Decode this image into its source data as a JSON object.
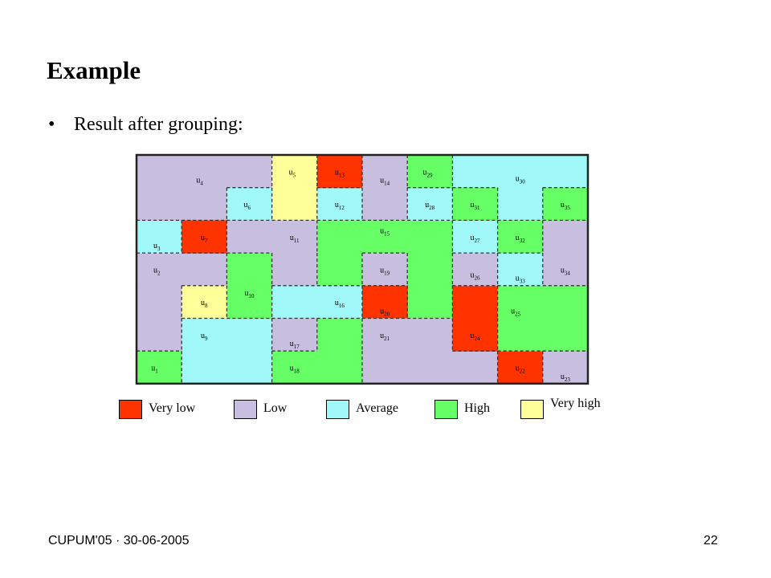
{
  "title": "Example",
  "bullet": "Result after grouping:",
  "bullet_symbol": "•",
  "footer": {
    "left": "CUPUM'05 · 30-06-2005",
    "page_number": "22"
  },
  "legend": [
    {
      "key": "very_low",
      "label": "Very low",
      "color": "#ff3300"
    },
    {
      "key": "low",
      "label": "Low",
      "color": "#c8bfe0"
    },
    {
      "key": "average",
      "label": "Average",
      "color": "#a0f8f8"
    },
    {
      "key": "high",
      "label": "High",
      "color": "#66ff66"
    },
    {
      "key": "very_high",
      "label": "Very high",
      "color": "#ffff99"
    }
  ],
  "units": [
    {
      "label": "u",
      "sub": "1",
      "class": "high"
    },
    {
      "label": "u",
      "sub": "2",
      "class": "low"
    },
    {
      "label": "u",
      "sub": "3",
      "class": "average"
    },
    {
      "label": "u",
      "sub": "4",
      "class": "low"
    },
    {
      "label": "u",
      "sub": "5",
      "class": "very_high"
    },
    {
      "label": "u",
      "sub": "6",
      "class": "average"
    },
    {
      "label": "u",
      "sub": "7",
      "class": "very_low"
    },
    {
      "label": "u",
      "sub": "8",
      "class": "very_high"
    },
    {
      "label": "u",
      "sub": "9",
      "class": "average"
    },
    {
      "label": "u",
      "sub": "10",
      "class": "high"
    },
    {
      "label": "u",
      "sub": "11",
      "class": "low"
    },
    {
      "label": "u",
      "sub": "12",
      "class": "average"
    },
    {
      "label": "u",
      "sub": "13",
      "class": "very_low"
    },
    {
      "label": "u",
      "sub": "14",
      "class": "low"
    },
    {
      "label": "u",
      "sub": "15",
      "class": "high"
    },
    {
      "label": "u",
      "sub": "16",
      "class": "average"
    },
    {
      "label": "u",
      "sub": "17",
      "class": "low"
    },
    {
      "label": "u",
      "sub": "18",
      "class": "high"
    },
    {
      "label": "u",
      "sub": "19",
      "class": "low"
    },
    {
      "label": "u",
      "sub": "20",
      "class": "very_low"
    },
    {
      "label": "u",
      "sub": "21",
      "class": "low"
    },
    {
      "label": "u",
      "sub": "22",
      "class": "very_low"
    },
    {
      "label": "u",
      "sub": "23",
      "class": "low"
    },
    {
      "label": "u",
      "sub": "24",
      "class": "very_low"
    },
    {
      "label": "u",
      "sub": "25",
      "class": "high"
    },
    {
      "label": "u",
      "sub": "26",
      "class": "low"
    },
    {
      "label": "u",
      "sub": "27",
      "class": "average"
    },
    {
      "label": "u",
      "sub": "28",
      "class": "average"
    },
    {
      "label": "u",
      "sub": "29",
      "class": "high"
    },
    {
      "label": "u",
      "sub": "30",
      "class": "average"
    },
    {
      "label": "u",
      "sub": "31",
      "class": "high"
    },
    {
      "label": "u",
      "sub": "32",
      "class": "high"
    },
    {
      "label": "u",
      "sub": "33",
      "class": "average"
    },
    {
      "label": "u",
      "sub": "34",
      "class": "low"
    },
    {
      "label": "u",
      "sub": "35",
      "class": "high"
    }
  ]
}
